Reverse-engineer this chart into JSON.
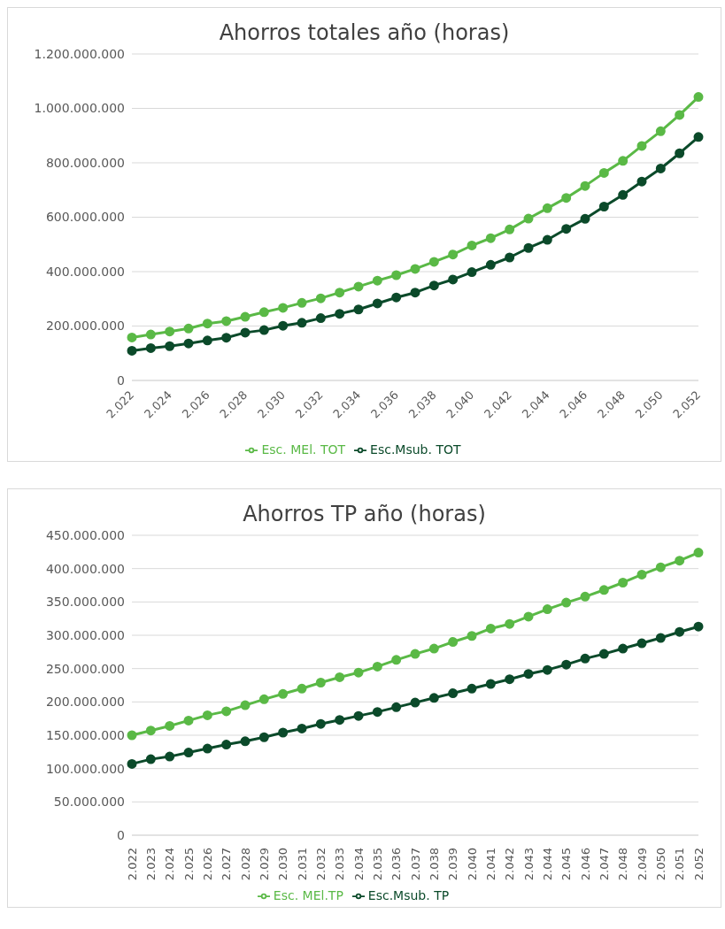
{
  "chart_data": [
    {
      "type": "line",
      "title": "Ahorros totales año (horas)",
      "categories": [
        "2.022",
        null,
        "2.024",
        null,
        "2.026",
        null,
        "2.028",
        null,
        "2.030",
        null,
        "2.032",
        null,
        "2.034",
        null,
        "2.036",
        null,
        "2.038",
        null,
        "2.040",
        null,
        "2.042",
        null,
        "2.044",
        null,
        "2.046",
        null,
        "2.048",
        null,
        "2.050",
        null,
        "2.052"
      ],
      "series": [
        {
          "name": "Esc. MEl. TOT",
          "color": "#5ab946",
          "values": [
            158000000,
            169000000,
            180000000,
            191000000,
            209000000,
            218000000,
            234000000,
            251000000,
            267000000,
            285000000,
            302000000,
            323000000,
            345000000,
            367000000,
            387000000,
            410000000,
            436000000,
            463000000,
            496000000,
            523000000,
            555000000,
            595000000,
            633000000,
            671000000,
            715000000,
            763000000,
            807000000,
            862000000,
            916000000,
            976000000,
            1042000000
          ]
        },
        {
          "name": "Esc.Msub. TOT",
          "color": "#0b4a2a",
          "values": [
            109000000,
            119000000,
            126000000,
            136000000,
            147000000,
            157000000,
            176000000,
            185000000,
            201000000,
            212000000,
            229000000,
            245000000,
            261000000,
            283000000,
            305000000,
            323000000,
            349000000,
            371000000,
            398000000,
            425000000,
            452000000,
            487000000,
            517000000,
            557000000,
            594000000,
            639000000,
            682000000,
            731000000,
            779000000,
            835000000,
            895000000
          ]
        }
      ],
      "ylim": [
        0,
        1200000000
      ],
      "yticks": [
        0,
        {
          "value": 200000000,
          "label": "200.000.000"
        },
        {
          "value": 400000000,
          "label": "400.000.000"
        },
        {
          "value": 600000000,
          "label": "600.000.000"
        },
        {
          "value": 800000000,
          "label": "800.000.000"
        },
        {
          "value": 1000000000,
          "label": "1.000.000.000"
        },
        {
          "value": 1200000000,
          "label": "1.200.000.000"
        }
      ],
      "grid": "y",
      "legend": "bottom",
      "marker": "circle"
    },
    {
      "type": "line",
      "title": "Ahorros TP año (horas)",
      "categories": [
        "2.022",
        "2.023",
        "2.024",
        "2.025",
        "2.026",
        "2.027",
        "2.028",
        "2.029",
        "2.030",
        "2.031",
        "2.032",
        "2.033",
        "2.034",
        "2.035",
        "2.036",
        "2.037",
        "2.038",
        "2.039",
        "2.040",
        "2.041",
        "2.042",
        "2.043",
        "2.044",
        "2.045",
        "2.046",
        "2.047",
        "2.048",
        "2.049",
        "2.050",
        "2.051",
        "2.052"
      ],
      "series": [
        {
          "name": "Esc. MEl.TP",
          "color": "#5ab946",
          "values": [
            150000000,
            157000000,
            164000000,
            172000000,
            180000000,
            186000000,
            195000000,
            204000000,
            212000000,
            220000000,
            229000000,
            237000000,
            244000000,
            253000000,
            263000000,
            272000000,
            280000000,
            290000000,
            299000000,
            310000000,
            317000000,
            328000000,
            339000000,
            349000000,
            358000000,
            368000000,
            379000000,
            391000000,
            402000000,
            412000000,
            424000000
          ]
        },
        {
          "name": "Esc.Msub. TP",
          "color": "#0b4a2a",
          "values": [
            107000000,
            114000000,
            118000000,
            124000000,
            130000000,
            136000000,
            141000000,
            147000000,
            154000000,
            160000000,
            167000000,
            173000000,
            179000000,
            185000000,
            192000000,
            199000000,
            206000000,
            213000000,
            220000000,
            227000000,
            234000000,
            242000000,
            248000000,
            256000000,
            265000000,
            272000000,
            280000000,
            288000000,
            296000000,
            305000000,
            313000000
          ]
        }
      ],
      "ylim": [
        0,
        450000000
      ],
      "yticks": [
        0,
        {
          "value": 50000000,
          "label": "50.000.000"
        },
        {
          "value": 100000000,
          "label": "100.000.000"
        },
        {
          "value": 150000000,
          "label": "150.000.000"
        },
        {
          "value": 200000000,
          "label": "200.000.000"
        },
        {
          "value": 250000000,
          "label": "250.000.000"
        },
        {
          "value": 300000000,
          "label": "300.000.000"
        },
        {
          "value": 350000000,
          "label": "350.000.000"
        },
        {
          "value": 400000000,
          "label": "400.000.000"
        },
        {
          "value": 450000000,
          "label": "450.000.000"
        }
      ],
      "grid": "y",
      "legend": "bottom",
      "marker": "circle"
    }
  ]
}
